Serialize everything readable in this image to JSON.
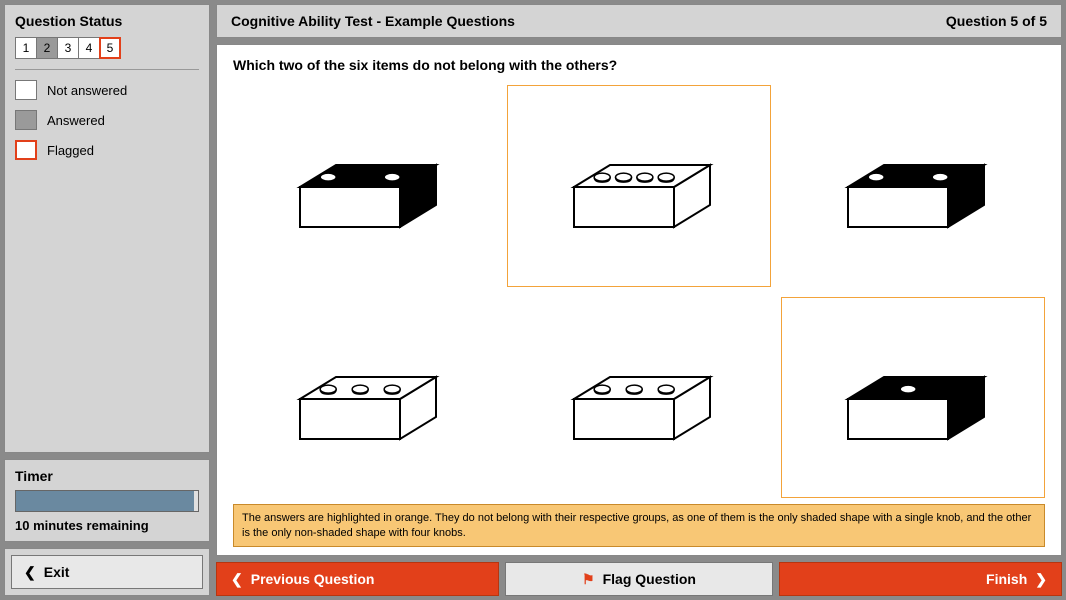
{
  "sidebar": {
    "status_title": "Question Status",
    "questions": [
      {
        "num": "1",
        "state": "not-answered"
      },
      {
        "num": "2",
        "state": "answered"
      },
      {
        "num": "3",
        "state": "not-answered"
      },
      {
        "num": "4",
        "state": "not-answered"
      },
      {
        "num": "5",
        "state": "flagged"
      }
    ],
    "legend": {
      "not_answered": "Not answered",
      "answered": "Answered",
      "flagged": "Flagged"
    },
    "timer_title": "Timer",
    "timer_fill_pct": 98,
    "timer_remaining": "10 minutes remaining",
    "exit_label": "Exit"
  },
  "header": {
    "title": "Cognitive Ability Test - Example Questions",
    "counter": "Question 5 of 5"
  },
  "question": {
    "text": "Which two of the six items do not belong with the others?",
    "items": [
      {
        "knobs": 2,
        "shaded": true,
        "selected": false
      },
      {
        "knobs": 4,
        "shaded": false,
        "selected": true
      },
      {
        "knobs": 2,
        "shaded": true,
        "selected": false
      },
      {
        "knobs": 3,
        "shaded": false,
        "selected": false
      },
      {
        "knobs": 3,
        "shaded": false,
        "selected": false
      },
      {
        "knobs": 1,
        "shaded": true,
        "selected": true
      }
    ],
    "explanation": "The answers are highlighted in orange. They do not belong with their respective groups, as one of them is the only shaded shape with a single knob, and the other is the only non-shaded shape with four knobs."
  },
  "footer": {
    "prev": "Previous Question",
    "flag": "Flag Question",
    "finish": "Finish"
  },
  "colors": {
    "accent": "#e2401a",
    "highlight": "#f3a33a",
    "panel": "#d4d4d4",
    "timer_fill": "#6a89a0",
    "explain_bg": "#f8c775"
  }
}
